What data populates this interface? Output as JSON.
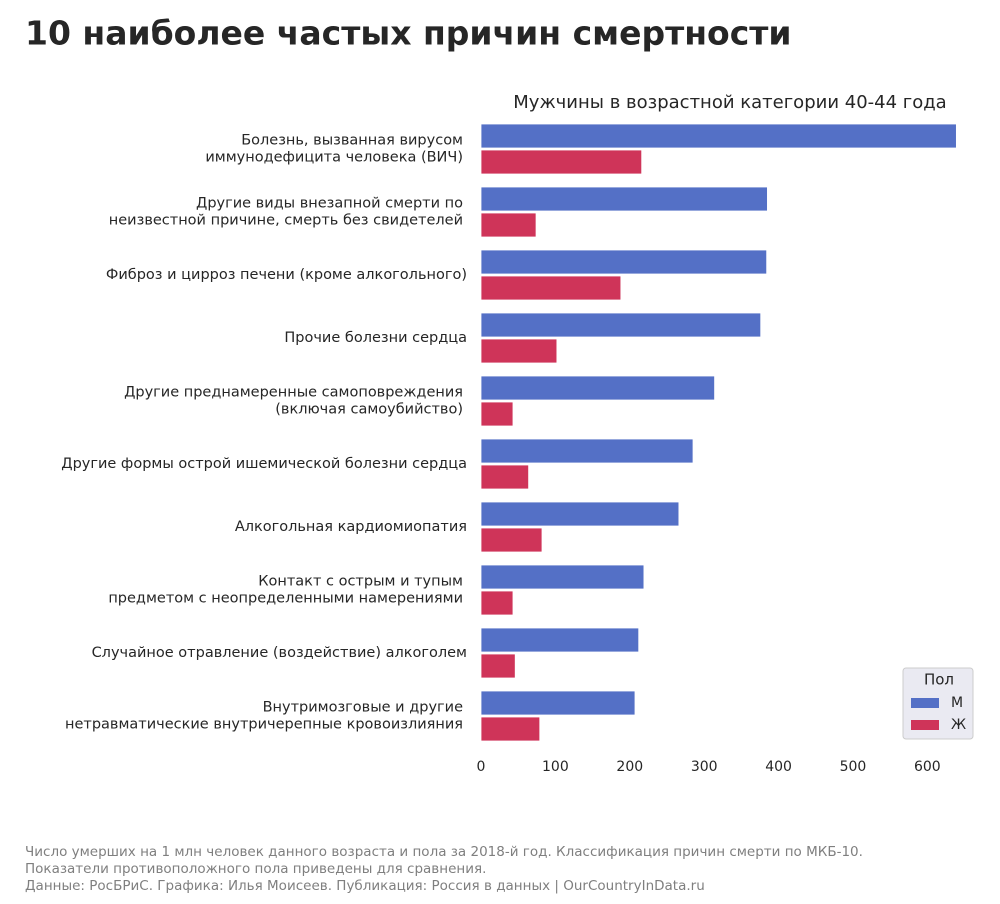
{
  "chart_data": {
    "type": "hbar",
    "title": "10 наиболее частых причин смертности",
    "subtitle": "Мужчины в возрастной категории 40-44 года",
    "categories": [
      "Болезнь, вызванная вирусом\nиммунодефицита человека (ВИЧ)",
      "Другие виды внезапной смерти по\nнеизвестной причине, смерть без свидетелей",
      "Фиброз и цирроз печени (кроме алкогольного)",
      "Прочие болезни сердца",
      "Другие преднамеренные самоповреждения\n(включая самоубийство)",
      "Другие формы острой ишемической болезни сердца",
      "Алкогольная кардиомиопатия",
      "Контакт с острым и тупым\nпредметом с неопределенными намерениями",
      "Случайное отравление (воздействие) алкоголем",
      "Внутримозговые и другие\nнетравматические внутричерепные кровоизлияния"
    ],
    "series": [
      {
        "name": "М",
        "color": "#5470c6",
        "values": [
          639,
          385,
          384,
          376,
          314,
          285,
          266,
          219,
          212,
          207
        ]
      },
      {
        "name": "Ж",
        "color": "#cf3459",
        "values": [
          216,
          74,
          188,
          102,
          43,
          64,
          82,
          43,
          46,
          79
        ]
      }
    ],
    "xlim": [
      0,
      660
    ],
    "xticks": [
      0,
      100,
      200,
      300,
      400,
      500,
      600
    ],
    "legend_title": "Пол",
    "legend": "lower right",
    "notes": [
      "Число умерших на 1 млн человек данного возраста и пола за 2018-й год. Классификация причин смерти по МКБ-10.",
      "Показатели противоположного пола приведены для сравнения.",
      "Данные: РосБРиС. Графика: Илья Моисеев. Публикация: Россия в данных | OurCountryInData.ru"
    ]
  }
}
